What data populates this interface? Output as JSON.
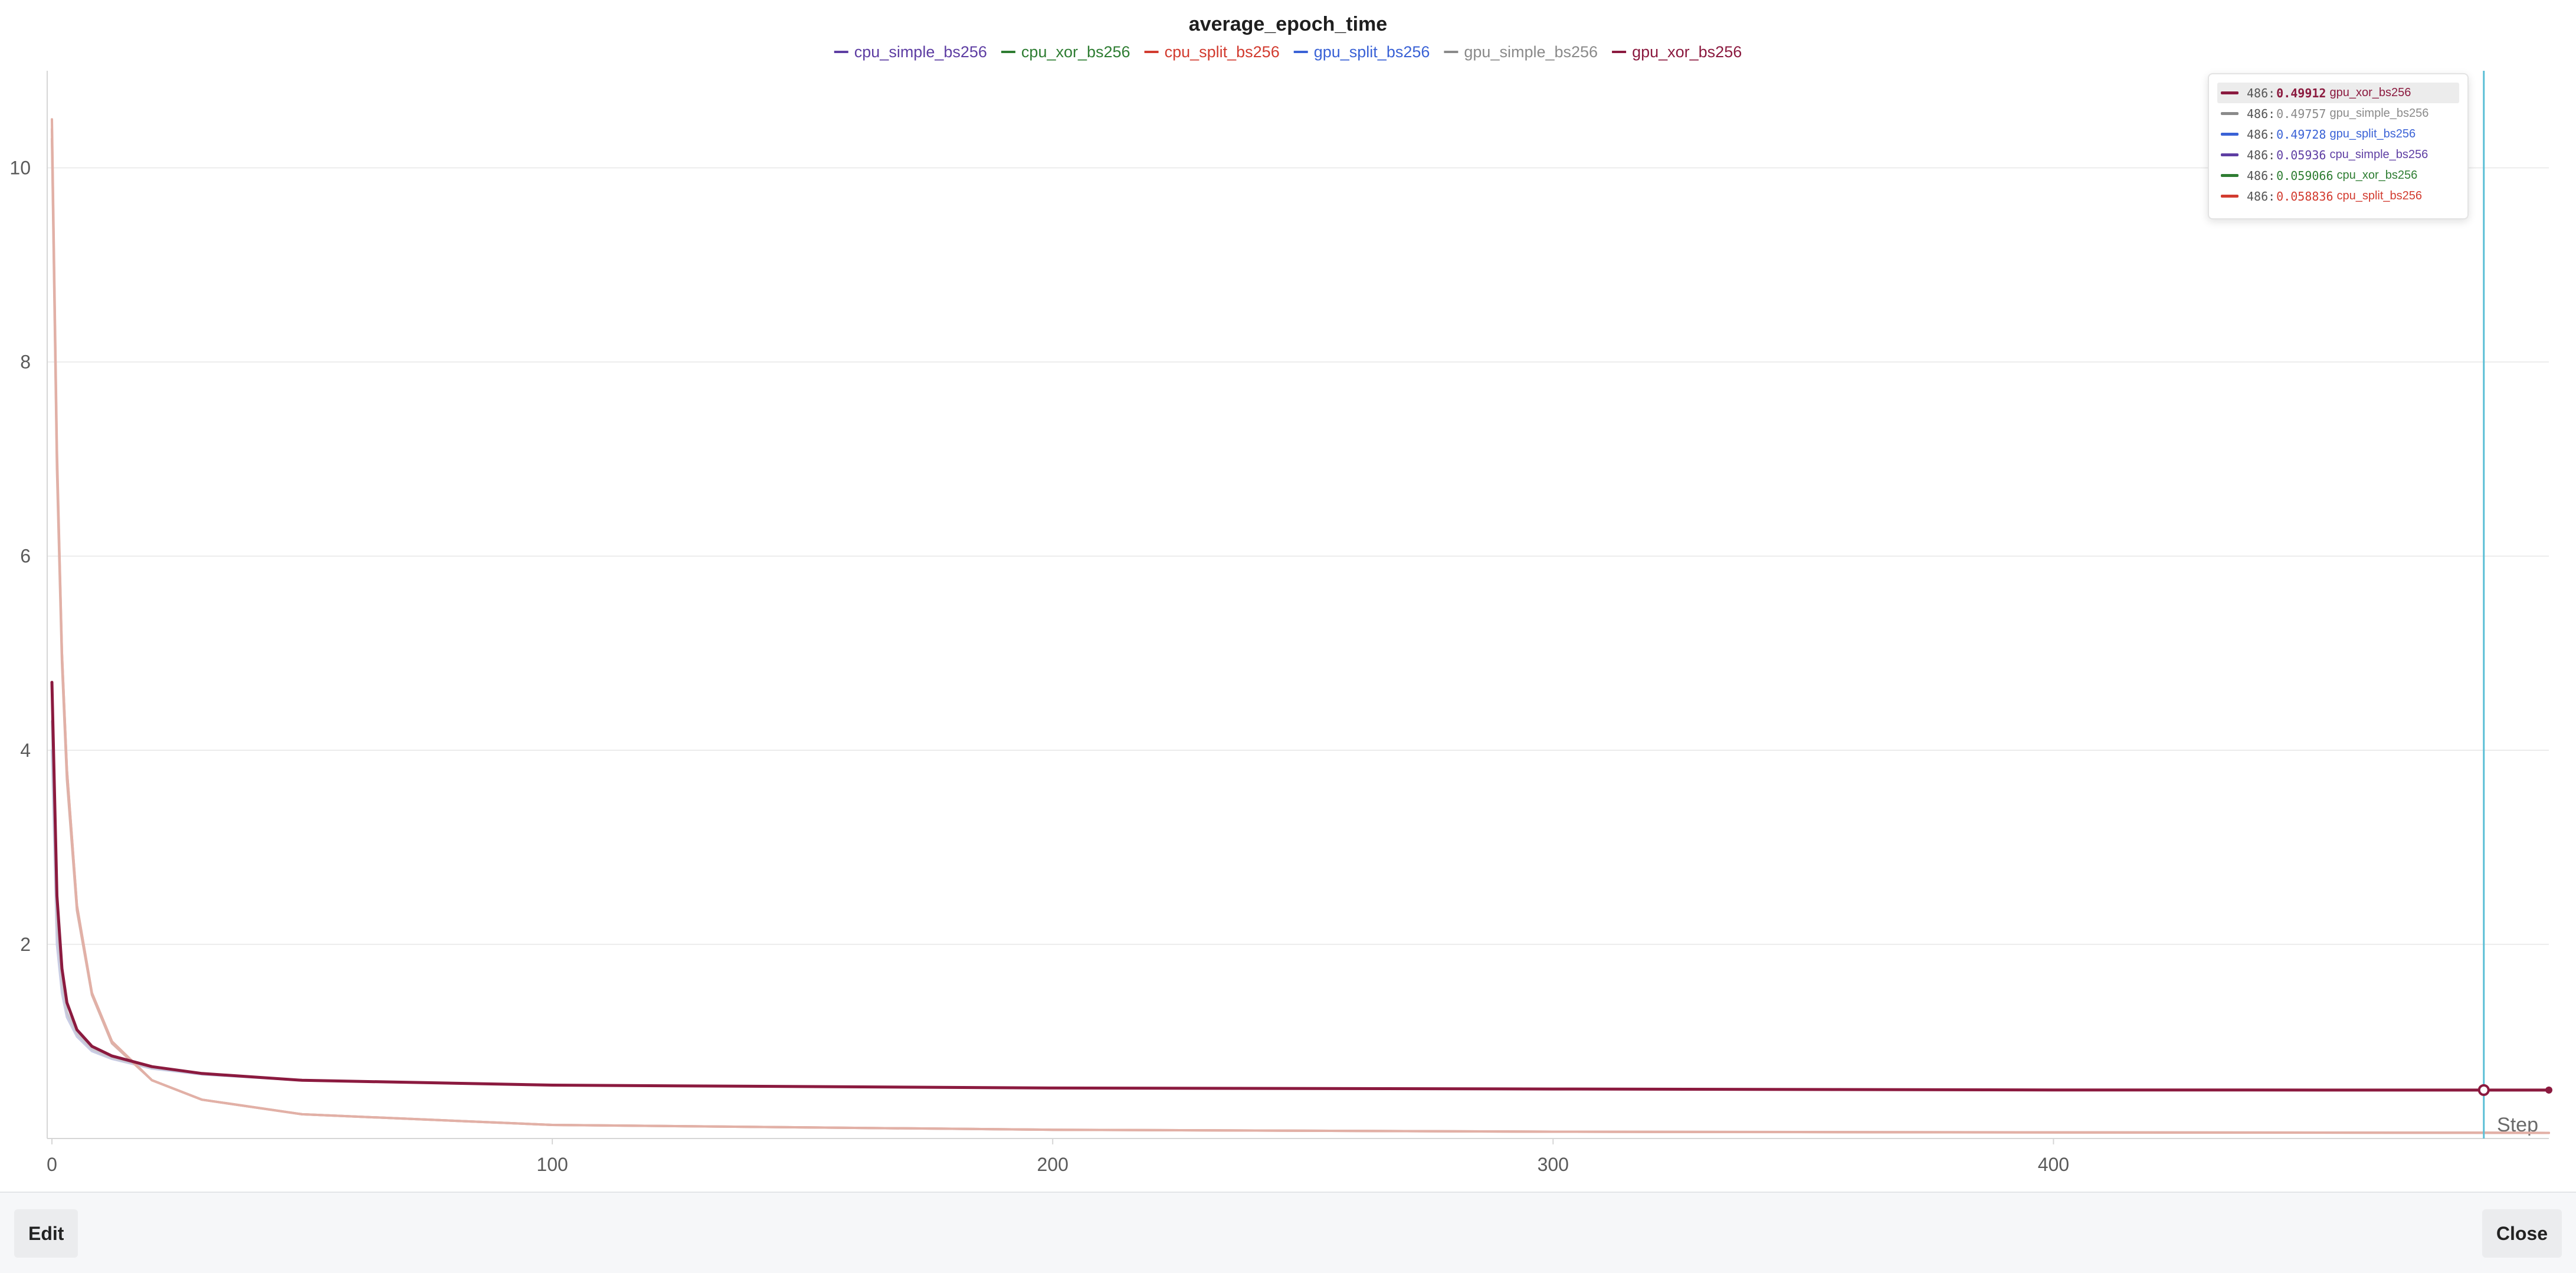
{
  "chart_data": {
    "type": "line",
    "title": "average_epoch_time",
    "xlabel": "Step",
    "ylabel": "",
    "xlim": [
      0,
      499
    ],
    "ylim": [
      0,
      11
    ],
    "x_ticks": [
      0,
      100,
      200,
      300,
      400
    ],
    "y_ticks": [
      2,
      4,
      6,
      8,
      10
    ],
    "grid": true,
    "legend_position": "top",
    "series": [
      {
        "name": "cpu_simple_bs256",
        "color": "#5e3ea3",
        "x": [
          0,
          1,
          2,
          3,
          5,
          8,
          12,
          20,
          30,
          50,
          100,
          200,
          300,
          400,
          486,
          499
        ],
        "y": [
          10.4,
          7.0,
          5.0,
          3.8,
          2.4,
          1.5,
          1.0,
          0.6,
          0.4,
          0.25,
          0.14,
          0.09,
          0.07,
          0.063,
          0.05936,
          0.058
        ]
      },
      {
        "name": "cpu_xor_bs256",
        "color": "#2e7d32",
        "x": [
          0,
          1,
          2,
          3,
          5,
          8,
          12,
          20,
          30,
          50,
          100,
          200,
          300,
          400,
          486,
          499
        ],
        "y": [
          10.3,
          6.9,
          4.9,
          3.7,
          2.35,
          1.48,
          0.98,
          0.6,
          0.4,
          0.25,
          0.14,
          0.09,
          0.07,
          0.063,
          0.059066,
          0.058
        ]
      },
      {
        "name": "cpu_split_bs256",
        "color": "#d23b2f",
        "x": [
          0,
          1,
          2,
          3,
          5,
          8,
          12,
          20,
          30,
          50,
          100,
          200,
          300,
          400,
          486,
          499
        ],
        "y": [
          10.5,
          7.1,
          5.0,
          3.8,
          2.4,
          1.5,
          1.0,
          0.6,
          0.4,
          0.25,
          0.14,
          0.09,
          0.07,
          0.062,
          0.058836,
          0.058
        ]
      },
      {
        "name": "gpu_split_bs256",
        "color": "#3a62d6",
        "x": [
          0,
          1,
          2,
          3,
          5,
          8,
          12,
          20,
          30,
          50,
          100,
          200,
          300,
          400,
          486,
          499
        ],
        "y": [
          4.0,
          2.0,
          1.5,
          1.25,
          1.05,
          0.9,
          0.82,
          0.72,
          0.66,
          0.6,
          0.55,
          0.52,
          0.51,
          0.5,
          0.49728,
          0.497
        ]
      },
      {
        "name": "gpu_simple_bs256",
        "color": "#8a8a8a",
        "x": [
          0,
          1,
          2,
          3,
          5,
          8,
          12,
          20,
          30,
          50,
          100,
          200,
          300,
          400,
          486,
          499
        ],
        "y": [
          4.3,
          2.2,
          1.6,
          1.3,
          1.08,
          0.92,
          0.83,
          0.73,
          0.67,
          0.6,
          0.55,
          0.52,
          0.51,
          0.5,
          0.49757,
          0.497
        ]
      },
      {
        "name": "gpu_xor_bs256",
        "color": "#8b1a3f",
        "x": [
          0,
          1,
          2,
          3,
          5,
          8,
          12,
          20,
          30,
          50,
          100,
          200,
          300,
          400,
          486,
          499
        ],
        "y": [
          4.7,
          2.5,
          1.75,
          1.4,
          1.12,
          0.95,
          0.85,
          0.74,
          0.67,
          0.6,
          0.55,
          0.52,
          0.51,
          0.5,
          0.49912,
          0.499
        ]
      }
    ],
    "hover": {
      "step": 486,
      "highlight_series": "gpu_xor_bs256",
      "rows": [
        {
          "step": "486:",
          "value": "0.49912",
          "name": "gpu_xor_bs256",
          "color": "#8b1a3f"
        },
        {
          "step": "486:",
          "value": "0.49757",
          "name": "gpu_simple_bs256",
          "color": "#8a8a8a"
        },
        {
          "step": "486:",
          "value": "0.49728",
          "name": "gpu_split_bs256",
          "color": "#3a62d6"
        },
        {
          "step": "486:",
          "value": "0.05936",
          "name": "cpu_simple_bs256",
          "color": "#5e3ea3"
        },
        {
          "step": "486:",
          "value": "0.059066",
          "name": "cpu_xor_bs256",
          "color": "#2e7d32"
        },
        {
          "step": "486:",
          "value": "0.058836",
          "name": "cpu_split_bs256",
          "color": "#d23b2f"
        }
      ]
    }
  },
  "colors": {
    "hover_line": "#5bbfd6",
    "grid": "#ececec",
    "axis": "#d6d6d6"
  },
  "footer": {
    "edit_label": "Edit",
    "close_label": "Close"
  }
}
